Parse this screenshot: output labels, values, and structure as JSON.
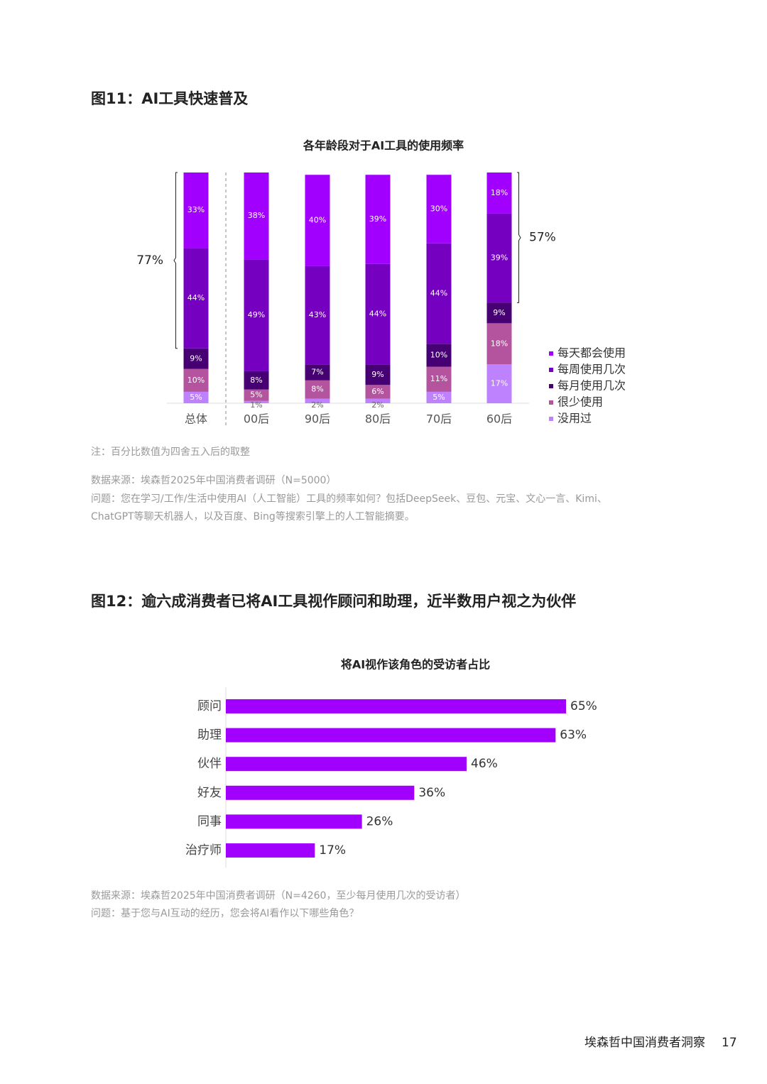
{
  "figure11_title": "图11：AI工具快速普及",
  "figure11_note": "注：百分比数值为四舍五入后的取整",
  "figure11_source": "数据来源：埃森哲2025年中国消费者调研（N=5000）",
  "figure11_question": [
    "问题：您在学习/工作/生活中使用AI（人工智能）工具的频率如何？包括DeepSeek、豆包、元宝、文心一言、Kimi、",
    "ChatGPT等聊天机器人，以及百度、Bing等搜索引擎上的人工智能摘要。"
  ],
  "figure12_title": "图12：逾六成消费者已将AI工具视作顾问和助理，近半数用户视之为伙伴",
  "figure12_source": "数据来源：埃森哲2025年中国消费者调研（N=4260，至少每月使用几次的受访者）",
  "figure12_question": "问题：基于您与AI互动的经历，您会将AI看作以下哪些角色？",
  "footer": {
    "text": "埃森哲中国消费者洞察",
    "page": "17"
  },
  "chart_data": [
    {
      "type": "stacked-bar",
      "title": "各年龄段对于AI工具的使用频率",
      "categories": [
        "总体",
        "00后",
        "90后",
        "80后",
        "70后",
        "60后"
      ],
      "ylim": [
        0,
        101
      ],
      "series": [
        {
          "name": "每天都会使用",
          "color": "#a100ff",
          "values": [
            33,
            38,
            40,
            39,
            30,
            18
          ],
          "value_labels": [
            "33%",
            "38%",
            "40%",
            "39%",
            "30%",
            "18%"
          ]
        },
        {
          "name": "每周使用几次",
          "color": "#7500c0",
          "values": [
            44,
            49,
            43,
            44,
            44,
            39
          ],
          "value_labels": [
            "44%",
            "49%",
            "43%",
            "44%",
            "44%",
            "39%"
          ]
        },
        {
          "name": "每月使用几次",
          "color": "#460073",
          "values": [
            9,
            8,
            7,
            9,
            10,
            9
          ],
          "value_labels": [
            "9%",
            "8%",
            "7%",
            "9%",
            "10%",
            "9%"
          ]
        },
        {
          "name": "很少使用",
          "color": "#b4549f",
          "values": [
            10,
            5,
            8,
            6,
            11,
            18
          ],
          "value_labels": [
            "10%",
            "5%",
            "8%",
            "6%",
            "11%",
            "18%"
          ]
        },
        {
          "name": "没用过",
          "color": "#be82ff",
          "values": [
            5,
            1,
            2,
            2,
            5,
            17
          ],
          "value_labels": [
            "5%",
            "1%",
            "2%",
            "2%",
            "5%",
            "17%"
          ]
        }
      ],
      "annotations": [
        {
          "category": 0,
          "side": "left",
          "value": 77,
          "label": "77%"
        },
        {
          "category": 5,
          "side": "right",
          "value": 57,
          "label": "57%"
        }
      ]
    },
    {
      "type": "hbar",
      "title": "将AI视作该角色的受访者占比",
      "categories": [
        "顾问",
        "助理",
        "伙伴",
        "好友",
        "同事",
        "治疗师"
      ],
      "values": [
        65,
        63,
        46,
        36,
        26,
        17
      ],
      "value_labels": [
        "65%",
        "63%",
        "46%",
        "36%",
        "26%",
        "17%"
      ],
      "color": "#a100ff",
      "xlim": [
        0,
        100
      ]
    }
  ]
}
